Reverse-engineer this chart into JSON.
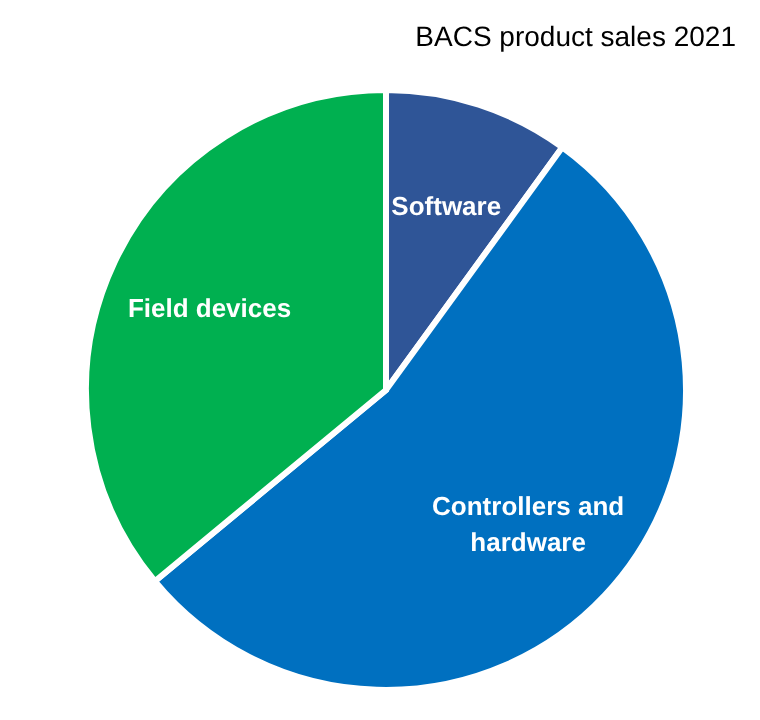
{
  "chart_data": {
    "type": "pie",
    "title": "BACS product sales 2021",
    "categories": [
      "Software",
      "Controllers and hardware",
      "Field devices"
    ],
    "values": [
      10,
      54,
      36
    ],
    "colors": [
      "#2f5597",
      "#0070c0",
      "#00b050"
    ]
  }
}
